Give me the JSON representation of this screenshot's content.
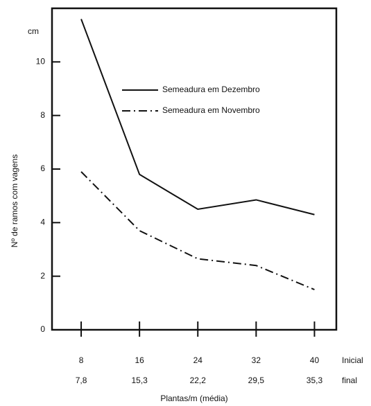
{
  "chart_data": {
    "type": "line",
    "y_unit": "cm",
    "y_label": "Nº de ramos com vagens",
    "x_label": "Plantas/m (média)",
    "x": [
      8,
      16,
      24,
      32,
      40
    ],
    "x_final_labels": [
      "7,8",
      "15,3",
      "22,2",
      "29,5",
      "35,3"
    ],
    "x_row_labels": [
      "Inicial",
      "final"
    ],
    "xlim": [
      4,
      43
    ],
    "xticks": [
      8,
      16,
      24,
      32,
      40
    ],
    "ylim": [
      0,
      12
    ],
    "yticks": [
      0,
      2,
      4,
      6,
      8,
      10
    ],
    "series": [
      {
        "name": "Semeadura em Dezembro",
        "color": "#111111",
        "dash": "solid",
        "values": [
          11.6,
          5.8,
          4.5,
          4.85,
          4.3
        ]
      },
      {
        "name": "Semeadura em Novembro",
        "color": "#111111",
        "dash": "dashdot",
        "values": [
          5.9,
          3.7,
          2.65,
          2.4,
          1.5
        ]
      }
    ]
  }
}
